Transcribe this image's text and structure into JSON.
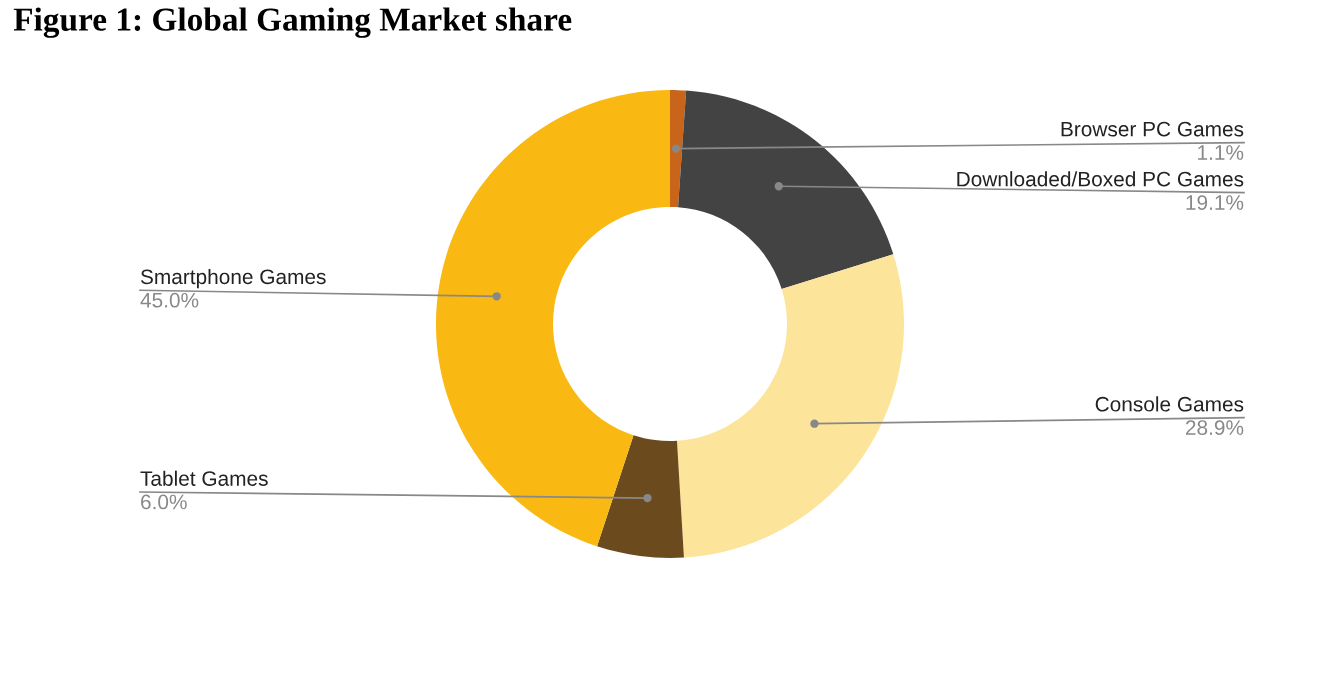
{
  "chart_data": {
    "type": "donut",
    "title": "Figure 1: Global Gaming Market share",
    "categories": [
      "Browser PC Games",
      "Downloaded/Boxed PC Games",
      "Console Games",
      "Tablet Games",
      "Smartphone Games"
    ],
    "values": [
      1.1,
      19.1,
      28.9,
      6.0,
      45.0
    ],
    "value_labels": [
      "1.1%",
      "19.1%",
      "28.9%",
      "6.0%",
      "45.0%"
    ],
    "colors": [
      "#c8651b",
      "#434343",
      "#fde49b",
      "#6b4a1e",
      "#f9b912"
    ],
    "legend": false
  }
}
